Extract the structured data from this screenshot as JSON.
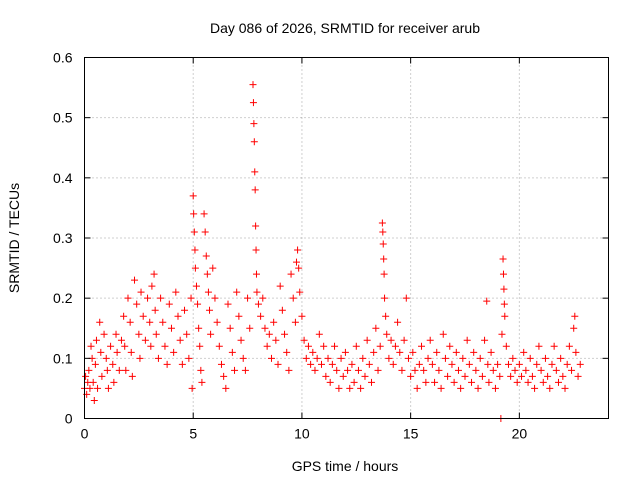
{
  "chart_data": {
    "type": "scatter",
    "title": "Day 086 of 2026, SRMTID for receiver arub",
    "xlabel": "GPS time / hours",
    "ylabel": "SRMTID / TECUs",
    "xlim": [
      0,
      24.1
    ],
    "ylim": [
      0,
      0.6
    ],
    "x_ticks": [
      0,
      5,
      10,
      15,
      20
    ],
    "x_tick_labels": [
      "0",
      "5",
      "10",
      "15",
      "20"
    ],
    "y_ticks": [
      0,
      0.1,
      0.2,
      0.3,
      0.4,
      0.5,
      0.6
    ],
    "y_tick_labels": [
      "0",
      "0.1",
      "0.2",
      "0.3",
      "0.4",
      "0.5",
      "0.6"
    ],
    "grid": true,
    "marker": "plus",
    "color": "#ff0000",
    "series": [
      {
        "name": "SRMTID",
        "points": [
          [
            0.0,
            0.05
          ],
          [
            0.05,
            0.07
          ],
          [
            0.1,
            0.04
          ],
          [
            0.15,
            0.06
          ],
          [
            0.2,
            0.08
          ],
          [
            0.25,
            0.05
          ],
          [
            0.3,
            0.12
          ],
          [
            0.35,
            0.1
          ],
          [
            0.4,
            0.06
          ],
          [
            0.45,
            0.03
          ],
          [
            0.5,
            0.09
          ],
          [
            0.55,
            0.13
          ],
          [
            0.6,
            0.05
          ],
          [
            0.7,
            0.16
          ],
          [
            0.75,
            0.11
          ],
          [
            0.8,
            0.07
          ],
          [
            0.9,
            0.14
          ],
          [
            1.0,
            0.1
          ],
          [
            1.05,
            0.08
          ],
          [
            1.1,
            0.05
          ],
          [
            1.2,
            0.12
          ],
          [
            1.3,
            0.09
          ],
          [
            1.35,
            0.06
          ],
          [
            1.45,
            0.14
          ],
          [
            1.5,
            0.11
          ],
          [
            1.6,
            0.08
          ],
          [
            1.7,
            0.13
          ],
          [
            1.8,
            0.17
          ],
          [
            1.85,
            0.12
          ],
          [
            1.9,
            0.08
          ],
          [
            2.0,
            0.2
          ],
          [
            2.1,
            0.16
          ],
          [
            2.15,
            0.11
          ],
          [
            2.2,
            0.07
          ],
          [
            2.3,
            0.23
          ],
          [
            2.4,
            0.19
          ],
          [
            2.5,
            0.14
          ],
          [
            2.55,
            0.1
          ],
          [
            2.6,
            0.21
          ],
          [
            2.7,
            0.17
          ],
          [
            2.8,
            0.13
          ],
          [
            2.9,
            0.2
          ],
          [
            3.0,
            0.16
          ],
          [
            3.05,
            0.12
          ],
          [
            3.1,
            0.22
          ],
          [
            3.2,
            0.24
          ],
          [
            3.25,
            0.18
          ],
          [
            3.3,
            0.14
          ],
          [
            3.4,
            0.1
          ],
          [
            3.5,
            0.2
          ],
          [
            3.6,
            0.16
          ],
          [
            3.7,
            0.12
          ],
          [
            3.8,
            0.09
          ],
          [
            3.9,
            0.19
          ],
          [
            4.0,
            0.15
          ],
          [
            4.1,
            0.11
          ],
          [
            4.2,
            0.21
          ],
          [
            4.3,
            0.17
          ],
          [
            4.4,
            0.13
          ],
          [
            4.5,
            0.09
          ],
          [
            4.6,
            0.18
          ],
          [
            4.7,
            0.14
          ],
          [
            4.8,
            0.1
          ],
          [
            4.9,
            0.2
          ],
          [
            4.95,
            0.05
          ],
          [
            5.0,
            0.37
          ],
          [
            5.02,
            0.34
          ],
          [
            5.05,
            0.31
          ],
          [
            5.08,
            0.28
          ],
          [
            5.1,
            0.25
          ],
          [
            5.15,
            0.22
          ],
          [
            5.2,
            0.19
          ],
          [
            5.25,
            0.15
          ],
          [
            5.3,
            0.12
          ],
          [
            5.35,
            0.08
          ],
          [
            5.4,
            0.06
          ],
          [
            5.5,
            0.34
          ],
          [
            5.55,
            0.31
          ],
          [
            5.6,
            0.27
          ],
          [
            5.65,
            0.24
          ],
          [
            5.7,
            0.21
          ],
          [
            5.75,
            0.18
          ],
          [
            5.8,
            0.14
          ],
          [
            5.9,
            0.25
          ],
          [
            6.0,
            0.2
          ],
          [
            6.1,
            0.16
          ],
          [
            6.2,
            0.12
          ],
          [
            6.3,
            0.09
          ],
          [
            6.4,
            0.07
          ],
          [
            6.5,
            0.05
          ],
          [
            6.6,
            0.19
          ],
          [
            6.7,
            0.15
          ],
          [
            6.8,
            0.11
          ],
          [
            6.9,
            0.08
          ],
          [
            7.0,
            0.21
          ],
          [
            7.1,
            0.17
          ],
          [
            7.2,
            0.13
          ],
          [
            7.3,
            0.1
          ],
          [
            7.4,
            0.08
          ],
          [
            7.5,
            0.2
          ],
          [
            7.6,
            0.15
          ],
          [
            7.75,
            0.555
          ],
          [
            7.77,
            0.525
          ],
          [
            7.79,
            0.49
          ],
          [
            7.81,
            0.46
          ],
          [
            7.83,
            0.41
          ],
          [
            7.85,
            0.38
          ],
          [
            7.87,
            0.32
          ],
          [
            7.89,
            0.28
          ],
          [
            7.91,
            0.24
          ],
          [
            7.93,
            0.21
          ],
          [
            8.0,
            0.19
          ],
          [
            8.1,
            0.17
          ],
          [
            8.2,
            0.2
          ],
          [
            8.3,
            0.15
          ],
          [
            8.4,
            0.12
          ],
          [
            8.5,
            0.14
          ],
          [
            8.6,
            0.1
          ],
          [
            8.7,
            0.16
          ],
          [
            8.8,
            0.13
          ],
          [
            8.9,
            0.09
          ],
          [
            9.0,
            0.22
          ],
          [
            9.1,
            0.18
          ],
          [
            9.2,
            0.14
          ],
          [
            9.3,
            0.11
          ],
          [
            9.4,
            0.08
          ],
          [
            9.5,
            0.24
          ],
          [
            9.6,
            0.2
          ],
          [
            9.7,
            0.16
          ],
          [
            9.75,
            0.26
          ],
          [
            9.8,
            0.28
          ],
          [
            9.85,
            0.25
          ],
          [
            9.9,
            0.21
          ],
          [
            10.0,
            0.17
          ],
          [
            10.1,
            0.13
          ],
          [
            10.2,
            0.1
          ],
          [
            10.3,
            0.12
          ],
          [
            10.4,
            0.09
          ],
          [
            10.5,
            0.11
          ],
          [
            10.6,
            0.08
          ],
          [
            10.7,
            0.1
          ],
          [
            10.8,
            0.14
          ],
          [
            10.9,
            0.09
          ],
          [
            11.0,
            0.12
          ],
          [
            11.1,
            0.07
          ],
          [
            11.2,
            0.1
          ],
          [
            11.3,
            0.06
          ],
          [
            11.4,
            0.09
          ],
          [
            11.5,
            0.12
          ],
          [
            11.6,
            0.08
          ],
          [
            11.7,
            0.05
          ],
          [
            11.8,
            0.1
          ],
          [
            11.9,
            0.07
          ],
          [
            12.0,
            0.11
          ],
          [
            12.1,
            0.08
          ],
          [
            12.2,
            0.05
          ],
          [
            12.3,
            0.09
          ],
          [
            12.4,
            0.06
          ],
          [
            12.5,
            0.12
          ],
          [
            12.6,
            0.08
          ],
          [
            12.7,
            0.05
          ],
          [
            12.8,
            0.1
          ],
          [
            12.9,
            0.07
          ],
          [
            13.0,
            0.13
          ],
          [
            13.1,
            0.09
          ],
          [
            13.2,
            0.06
          ],
          [
            13.3,
            0.11
          ],
          [
            13.4,
            0.15
          ],
          [
            13.5,
            0.08
          ],
          [
            13.6,
            0.12
          ],
          [
            13.7,
            0.325
          ],
          [
            13.72,
            0.31
          ],
          [
            13.74,
            0.29
          ],
          [
            13.76,
            0.265
          ],
          [
            13.78,
            0.24
          ],
          [
            13.8,
            0.2
          ],
          [
            13.85,
            0.17
          ],
          [
            13.9,
            0.14
          ],
          [
            14.0,
            0.1
          ],
          [
            14.1,
            0.13
          ],
          [
            14.2,
            0.09
          ],
          [
            14.3,
            0.12
          ],
          [
            14.4,
            0.16
          ],
          [
            14.5,
            0.11
          ],
          [
            14.6,
            0.08
          ],
          [
            14.7,
            0.13
          ],
          [
            14.8,
            0.2
          ],
          [
            14.9,
            0.1
          ],
          [
            15.0,
            0.07
          ],
          [
            15.1,
            0.11
          ],
          [
            15.2,
            0.08
          ],
          [
            15.3,
            0.05
          ],
          [
            15.4,
            0.09
          ],
          [
            15.5,
            0.12
          ],
          [
            15.6,
            0.08
          ],
          [
            15.7,
            0.06
          ],
          [
            15.8,
            0.1
          ],
          [
            15.9,
            0.13
          ],
          [
            16.0,
            0.09
          ],
          [
            16.1,
            0.06
          ],
          [
            16.2,
            0.11
          ],
          [
            16.3,
            0.08
          ],
          [
            16.4,
            0.05
          ],
          [
            16.5,
            0.14
          ],
          [
            16.6,
            0.1
          ],
          [
            16.7,
            0.07
          ],
          [
            16.8,
            0.12
          ],
          [
            16.9,
            0.09
          ],
          [
            17.0,
            0.06
          ],
          [
            17.1,
            0.11
          ],
          [
            17.2,
            0.08
          ],
          [
            17.3,
            0.05
          ],
          [
            17.4,
            0.1
          ],
          [
            17.5,
            0.07
          ],
          [
            17.6,
            0.13
          ],
          [
            17.7,
            0.09
          ],
          [
            17.8,
            0.06
          ],
          [
            17.9,
            0.11
          ],
          [
            18.0,
            0.08
          ],
          [
            18.1,
            0.05
          ],
          [
            18.2,
            0.1
          ],
          [
            18.3,
            0.07
          ],
          [
            18.4,
            0.13
          ],
          [
            18.5,
            0.195
          ],
          [
            18.55,
            0.09
          ],
          [
            18.6,
            0.06
          ],
          [
            18.7,
            0.11
          ],
          [
            18.8,
            0.08
          ],
          [
            18.9,
            0.05
          ],
          [
            19.0,
            0.09
          ],
          [
            19.1,
            0.07
          ],
          [
            19.15,
            0.0
          ],
          [
            19.2,
            0.14
          ],
          [
            19.25,
            0.265
          ],
          [
            19.27,
            0.24
          ],
          [
            19.29,
            0.215
          ],
          [
            19.31,
            0.19
          ],
          [
            19.33,
            0.17
          ],
          [
            19.4,
            0.12
          ],
          [
            19.5,
            0.09
          ],
          [
            19.6,
            0.07
          ],
          [
            19.7,
            0.1
          ],
          [
            19.8,
            0.08
          ],
          [
            19.9,
            0.06
          ],
          [
            20.0,
            0.09
          ],
          [
            20.1,
            0.07
          ],
          [
            20.2,
            0.11
          ],
          [
            20.3,
            0.08
          ],
          [
            20.4,
            0.06
          ],
          [
            20.5,
            0.1
          ],
          [
            20.6,
            0.07
          ],
          [
            20.7,
            0.05
          ],
          [
            20.8,
            0.09
          ],
          [
            20.9,
            0.12
          ],
          [
            21.0,
            0.08
          ],
          [
            21.1,
            0.06
          ],
          [
            21.2,
            0.1
          ],
          [
            21.3,
            0.07
          ],
          [
            21.4,
            0.05
          ],
          [
            21.5,
            0.09
          ],
          [
            21.6,
            0.12
          ],
          [
            21.7,
            0.08
          ],
          [
            21.8,
            0.06
          ],
          [
            21.9,
            0.1
          ],
          [
            22.0,
            0.07
          ],
          [
            22.1,
            0.05
          ],
          [
            22.2,
            0.09
          ],
          [
            22.3,
            0.12
          ],
          [
            22.4,
            0.08
          ],
          [
            22.5,
            0.15
          ],
          [
            22.55,
            0.17
          ],
          [
            22.6,
            0.11
          ],
          [
            22.7,
            0.07
          ],
          [
            22.8,
            0.09
          ]
        ]
      }
    ]
  }
}
